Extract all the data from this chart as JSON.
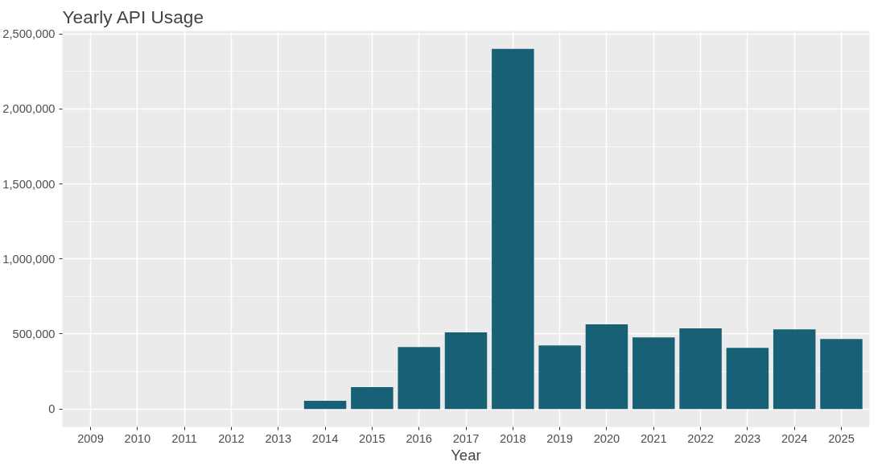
{
  "chart_data": {
    "type": "bar",
    "title": "Yearly API Usage",
    "xlabel": "Year",
    "categories": [
      "2009",
      "2010",
      "2011",
      "2012",
      "2013",
      "2014",
      "2015",
      "2016",
      "2017",
      "2018",
      "2019",
      "2020",
      "2021",
      "2022",
      "2023",
      "2024",
      "2025"
    ],
    "values": [
      0,
      0,
      0,
      0,
      0,
      55000,
      145000,
      412000,
      510000,
      2400000,
      423000,
      564000,
      477000,
      537000,
      407000,
      531000,
      466000
    ],
    "color": "#176075",
    "ylim": [
      -120000,
      2520000
    ],
    "yticks": [
      0,
      {
        "value": 500000,
        "label": "500,000"
      },
      {
        "value": 1000000,
        "label": "1,000,000"
      },
      {
        "value": 1500000,
        "label": "1,500,000"
      },
      {
        "value": 2000000,
        "label": "2,000,000"
      },
      {
        "value": 2500000,
        "label": "2,500,000"
      }
    ],
    "grid": true
  }
}
